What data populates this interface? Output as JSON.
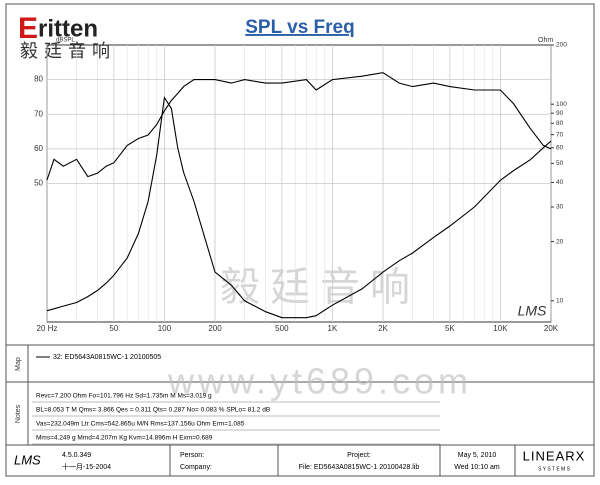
{
  "header": {
    "brand": "ritten",
    "brand_initial": "E",
    "brand_cn": "毅廷音响"
  },
  "chart_data": {
    "type": "line",
    "title": "SPL vs Freq",
    "y_label": "dBSPL",
    "y2_label": "Ohm",
    "log_x": true,
    "log_y2": true,
    "grid": true,
    "watermark": "毅廷音响",
    "signature": "LMS",
    "xlim": [
      20,
      20000
    ],
    "xticks": [
      {
        "value": 20,
        "label": "20 Hz"
      },
      50,
      100,
      200,
      500,
      {
        "value": 1000,
        "label": "1K"
      },
      {
        "value": 2000,
        "label": "2K"
      },
      {
        "value": 5000,
        "label": "5K"
      },
      {
        "value": 10000,
        "label": "10K"
      },
      {
        "value": 20000,
        "label": "20K"
      }
    ],
    "ylim": [
      10,
      90
    ],
    "yticks": [
      50,
      60,
      70,
      80
    ],
    "y2lim": [
      7.8,
      200
    ],
    "y2ticks": [
      10,
      20,
      30,
      40,
      50,
      60,
      70,
      80,
      90,
      100,
      200
    ],
    "x": [
      20,
      22,
      25,
      30,
      35,
      40,
      45,
      50,
      60,
      70,
      80,
      90,
      100,
      110,
      120,
      130,
      150,
      200,
      250,
      300,
      400,
      500,
      700,
      800,
      1000,
      1500,
      2000,
      2500,
      3000,
      4000,
      5000,
      7000,
      10000,
      12000,
      15000,
      18000,
      20000
    ],
    "series": [
      {
        "name": "SPL",
        "color": "#000000",
        "values": [
          51,
          57,
          55,
          57,
          52,
          53,
          55,
          56,
          61,
          63,
          64,
          67,
          71,
          74,
          76,
          78,
          80,
          80,
          79,
          80,
          79,
          79,
          80,
          77,
          80,
          81,
          82,
          79,
          78,
          79,
          78,
          77,
          77,
          73,
          66,
          61,
          60
        ]
      },
      {
        "name": "Impedance",
        "color": "#000000",
        "axis": "y2",
        "values": [
          8.9,
          9.1,
          9.4,
          9.8,
          10.5,
          11.3,
          12.3,
          13.5,
          16.5,
          22,
          32,
          55,
          108,
          95,
          60,
          45,
          32,
          14,
          12,
          10,
          8.8,
          8.2,
          8.2,
          8.4,
          9.5,
          11.5,
          14,
          16,
          17.5,
          21,
          24,
          30,
          41,
          46,
          52,
          60,
          65
        ]
      }
    ]
  },
  "map": {
    "label": "Map",
    "legend": "32: ED5643A0815WC-1  20100505"
  },
  "notes": {
    "label": "Notes",
    "watermark": "www.yt689.com",
    "lines": [
      "Revc=7.200 Ohm  Fo=101.796 Hz  Sd=1.735m M  Ms=3.019 g",
      "BL=8.053 T M  Qms= 3.866  Qes = 0.311  Qts= 0.287  No= 0.083 %  SPLo= 81.2 dB",
      "Vas=232.049m Ltr  Cms=542.865u M/N  Rms=137.156u Ohm  Erm=1.085",
      "Mms=4.249 g  Mmd=4.207m Kg  Kvm=14.896m H  Exm=0.689"
    ]
  },
  "footer": {
    "app": "LMS",
    "version": "4.5.0.349",
    "date_cn": "十一月-15-2004",
    "person": "Person:",
    "company": "Company:",
    "project": "Project:",
    "file": "File: ED5643A0815WC-1 20100428.lib",
    "date": "May 5, 2010",
    "time": "Wed 10:10 am",
    "maker": "LINEARX",
    "maker_sub": "S Y S T E M S"
  }
}
